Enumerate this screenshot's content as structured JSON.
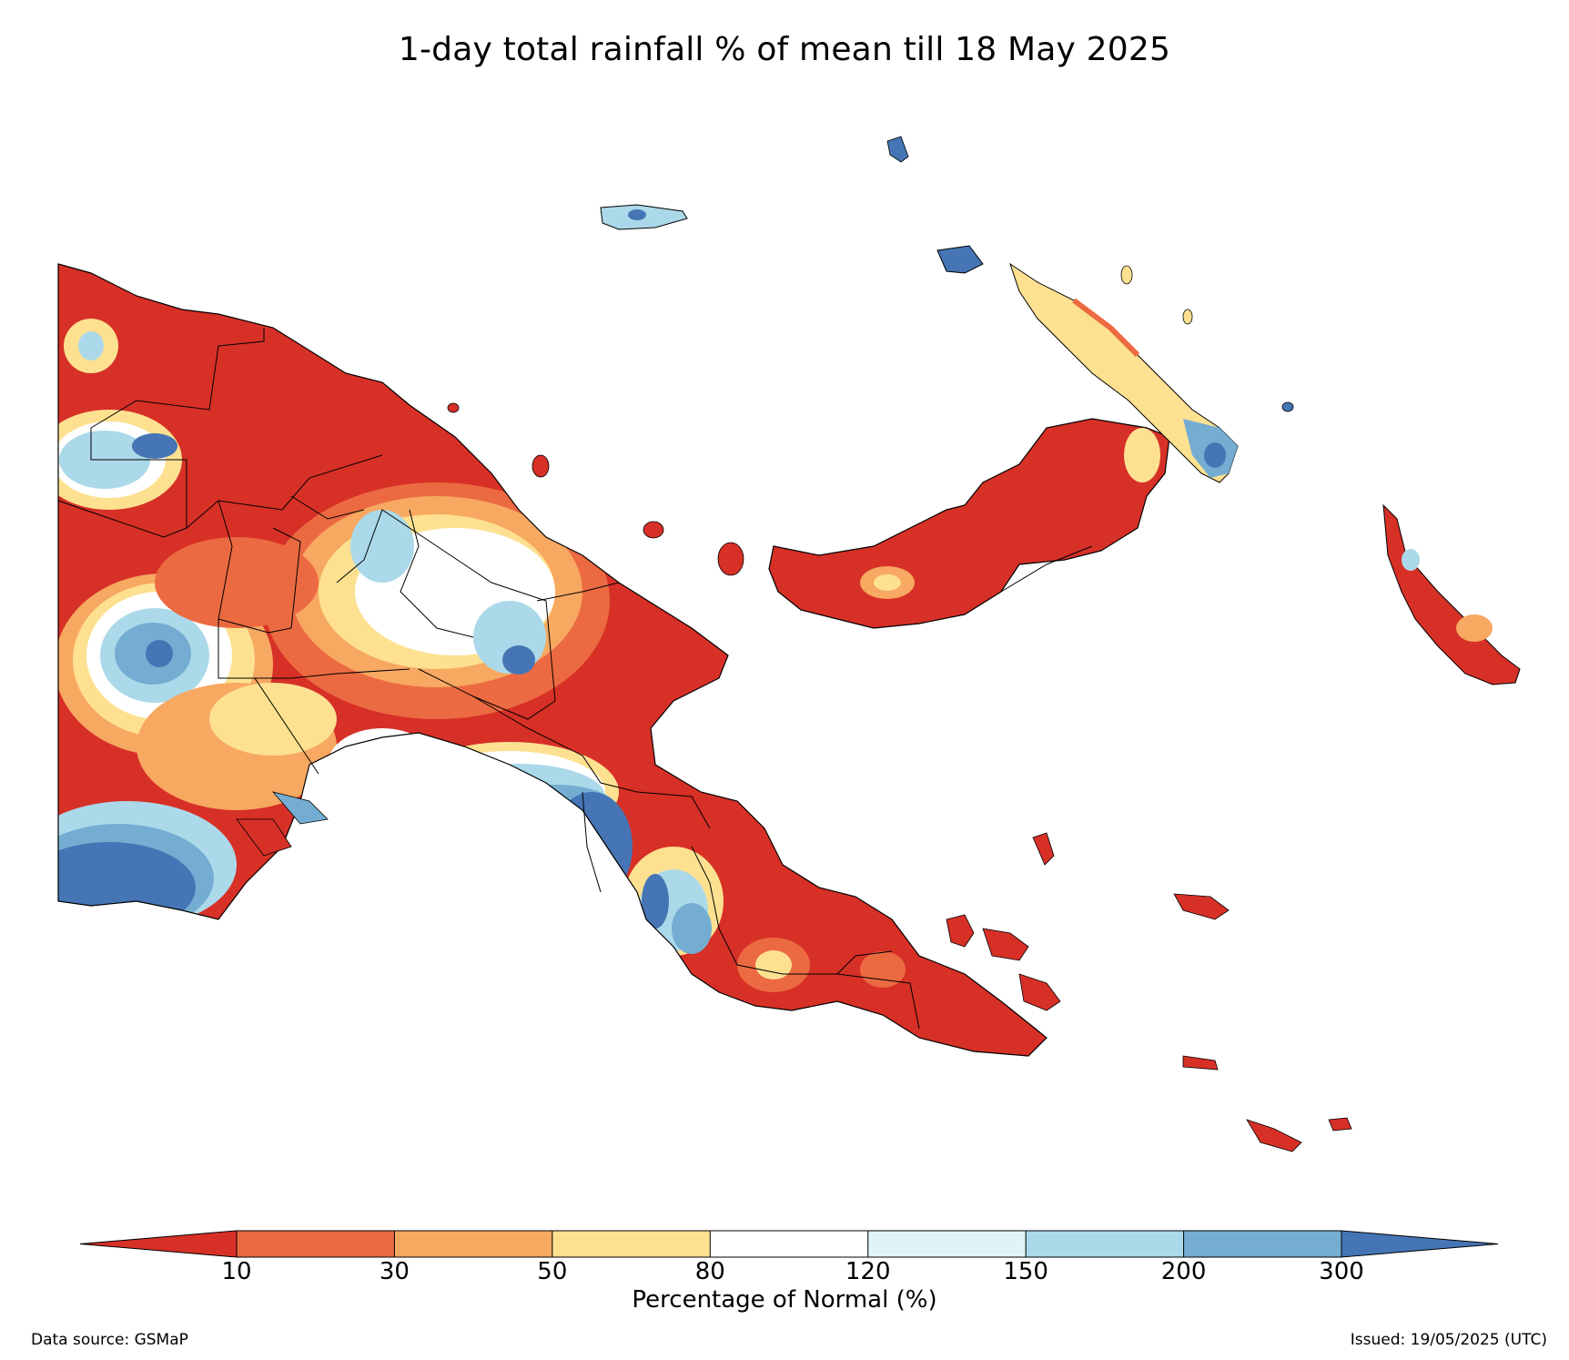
{
  "title": "1-day total rainfall % of mean till 18 May 2025",
  "colorbar": {
    "label": "Percentage of Normal (%)",
    "ticks": [
      "10",
      "30",
      "50",
      "80",
      "120",
      "150",
      "200",
      "300"
    ],
    "colors": [
      "#d73027",
      "#ec6a41",
      "#f7a861",
      "#fde191",
      "#ffffff",
      "#e0f3f8",
      "#abd9e9",
      "#74add1",
      "#4575b4"
    ]
  },
  "footer": {
    "source": "Data source: GSMaP",
    "issued": "Issued: 19/05/2025 (UTC)"
  },
  "palette": {
    "dark_red": "#d73027",
    "orange_red": "#ec6a41",
    "orange": "#f7a861",
    "yellow": "#fde191",
    "white": "#ffffff",
    "pale_blue": "#e0f3f8",
    "light_blue": "#abd9e9",
    "mid_blue": "#74add1",
    "dark_blue": "#4575b4"
  }
}
